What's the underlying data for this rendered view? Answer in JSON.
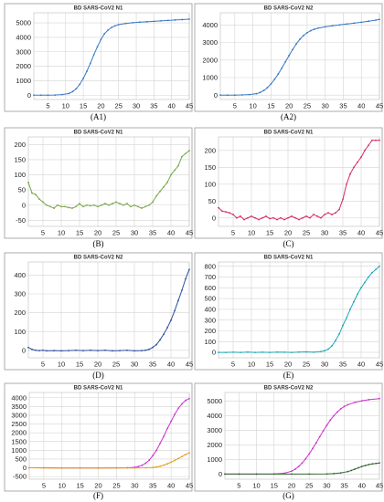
{
  "figure": {
    "caption_labels": [
      "(A1)",
      "(A2)",
      "(B)",
      "(C)",
      "(D)",
      "(E)",
      "(F)",
      "(G)"
    ]
  },
  "chart_data": [
    {
      "panel": "(A1)",
      "type": "line",
      "title": "BD SARS-CoV2 N1",
      "x_ticks": [
        5,
        10,
        15,
        20,
        25,
        30,
        35,
        40,
        45
      ],
      "y_ticks": [
        0,
        1000,
        2000,
        3000,
        4000,
        5000
      ],
      "xlim": [
        1,
        45
      ],
      "ylim": [
        -300,
        5700
      ],
      "grid": true,
      "series": [
        {
          "color": "#3a78c2",
          "x": [
            1,
            3,
            5,
            7,
            9,
            11,
            12,
            13,
            14,
            15,
            16,
            17,
            18,
            19,
            20,
            21,
            22,
            23,
            24,
            25,
            27,
            29,
            31,
            33,
            35,
            37,
            39,
            41,
            43,
            45
          ],
          "y": [
            0,
            0,
            0,
            10,
            40,
            120,
            250,
            450,
            750,
            1150,
            1650,
            2200,
            2800,
            3350,
            3850,
            4250,
            4500,
            4680,
            4800,
            4880,
            4960,
            5010,
            5050,
            5080,
            5110,
            5140,
            5170,
            5200,
            5230,
            5260
          ]
        }
      ]
    },
    {
      "panel": "(A2)",
      "type": "line",
      "title": "BD SARS-CoV2 N2",
      "x_ticks": [
        5,
        10,
        15,
        20,
        25,
        30,
        35,
        40,
        45
      ],
      "y_ticks": [
        0,
        1000,
        2000,
        3000,
        4000
      ],
      "xlim": [
        1,
        45
      ],
      "ylim": [
        -250,
        4700
      ],
      "grid": true,
      "series": [
        {
          "color": "#3a78c2",
          "x": [
            1,
            3,
            5,
            7,
            9,
            11,
            12,
            13,
            14,
            15,
            16,
            17,
            18,
            19,
            20,
            21,
            22,
            23,
            24,
            25,
            26,
            27,
            28,
            30,
            32,
            34,
            36,
            38,
            40,
            42,
            44,
            45
          ],
          "y": [
            0,
            0,
            0,
            10,
            30,
            80,
            150,
            260,
            420,
            640,
            900,
            1200,
            1540,
            1900,
            2260,
            2600,
            2920,
            3190,
            3400,
            3560,
            3680,
            3760,
            3820,
            3900,
            3960,
            4010,
            4060,
            4110,
            4160,
            4220,
            4280,
            4320
          ]
        }
      ]
    },
    {
      "panel": "(B)",
      "type": "line",
      "title": "BD SARS-CoV2 N1",
      "x_ticks": [
        5,
        10,
        15,
        20,
        25,
        30,
        35,
        40,
        45
      ],
      "y_ticks": [
        -50,
        0,
        50,
        100,
        150,
        200
      ],
      "xlim": [
        1,
        45
      ],
      "ylim": [
        -70,
        225
      ],
      "grid": true,
      "series": [
        {
          "color": "#7aa84a",
          "x": [
            1,
            2,
            3,
            4,
            5,
            6,
            7,
            8,
            9,
            10,
            11,
            12,
            13,
            14,
            15,
            16,
            17,
            18,
            19,
            20,
            21,
            22,
            23,
            24,
            25,
            26,
            27,
            28,
            29,
            30,
            31,
            32,
            33,
            34,
            35,
            36,
            37,
            38,
            39,
            40,
            41,
            42,
            43,
            44,
            45
          ],
          "y": [
            75,
            40,
            35,
            20,
            10,
            0,
            -5,
            -10,
            0,
            -5,
            -5,
            -8,
            -10,
            -5,
            5,
            -5,
            0,
            -2,
            0,
            -5,
            0,
            5,
            0,
            5,
            10,
            5,
            0,
            5,
            -5,
            0,
            -5,
            -10,
            -5,
            0,
            10,
            30,
            45,
            60,
            75,
            100,
            115,
            130,
            160,
            170,
            180
          ]
        }
      ]
    },
    {
      "panel": "(C)",
      "type": "line",
      "title": "BD SARS-CoV2 N1",
      "x_ticks": [
        5,
        10,
        15,
        20,
        25,
        30,
        35,
        40,
        45
      ],
      "y_ticks": [
        0,
        50,
        100,
        150,
        200
      ],
      "xlim": [
        1,
        45
      ],
      "ylim": [
        -25,
        240
      ],
      "grid": true,
      "series": [
        {
          "color": "#d62c6a",
          "x": [
            1,
            2,
            3,
            4,
            5,
            6,
            7,
            8,
            9,
            10,
            11,
            12,
            13,
            14,
            15,
            16,
            17,
            18,
            19,
            20,
            21,
            22,
            23,
            24,
            25,
            26,
            27,
            28,
            29,
            30,
            31,
            32,
            33,
            34,
            35,
            36,
            37,
            38,
            39,
            40,
            41,
            42,
            43,
            44,
            45
          ],
          "y": [
            30,
            20,
            18,
            15,
            10,
            0,
            5,
            -5,
            0,
            5,
            0,
            -5,
            0,
            5,
            -2,
            0,
            -5,
            0,
            -5,
            0,
            5,
            0,
            -5,
            0,
            5,
            0,
            10,
            5,
            0,
            10,
            15,
            10,
            15,
            25,
            55,
            100,
            130,
            150,
            165,
            180,
            200,
            215,
            230,
            230,
            230
          ]
        }
      ]
    },
    {
      "panel": "(D)",
      "type": "line",
      "title": "BD SARS-CoV2 N2",
      "x_ticks": [
        5,
        10,
        15,
        20,
        25,
        30,
        35,
        40,
        45
      ],
      "y_ticks": [
        0,
        100,
        200,
        300,
        400
      ],
      "xlim": [
        1,
        45
      ],
      "ylim": [
        -40,
        470
      ],
      "grid": true,
      "series": [
        {
          "color": "#2f4fa3",
          "x": [
            1,
            2,
            3,
            4,
            5,
            6,
            8,
            10,
            12,
            14,
            16,
            18,
            20,
            22,
            24,
            26,
            28,
            30,
            32,
            33,
            34,
            35,
            36,
            37,
            38,
            39,
            40,
            41,
            42,
            43,
            44,
            45
          ],
          "y": [
            15,
            5,
            0,
            -2,
            0,
            -3,
            -2,
            -3,
            -2,
            0,
            -2,
            0,
            -2,
            0,
            -3,
            -2,
            0,
            -3,
            -2,
            0,
            5,
            15,
            30,
            55,
            85,
            120,
            160,
            210,
            265,
            320,
            380,
            430
          ]
        }
      ]
    },
    {
      "panel": "(E)",
      "type": "line",
      "title": "BD SARS-CoV2 N1",
      "x_ticks": [
        5,
        10,
        15,
        20,
        25,
        30,
        35,
        40,
        45
      ],
      "y_ticks": [
        0,
        100,
        200,
        300,
        400,
        500,
        600,
        700,
        800
      ],
      "xlim": [
        1,
        45
      ],
      "ylim": [
        -50,
        840
      ],
      "grid": true,
      "series": [
        {
          "color": "#1fa8b8",
          "x": [
            1,
            3,
            5,
            7,
            9,
            11,
            13,
            15,
            17,
            19,
            21,
            23,
            25,
            27,
            29,
            30,
            31,
            32,
            33,
            34,
            35,
            36,
            37,
            38,
            39,
            40,
            41,
            42,
            43,
            44,
            45
          ],
          "y": [
            0,
            0,
            2,
            0,
            3,
            0,
            2,
            0,
            3,
            2,
            0,
            3,
            5,
            2,
            8,
            15,
            30,
            60,
            110,
            170,
            250,
            320,
            400,
            470,
            540,
            600,
            650,
            700,
            740,
            770,
            800
          ]
        }
      ]
    },
    {
      "panel": "(F)",
      "type": "line",
      "title": "BD SARS-CoV2 N1",
      "x_ticks": [
        5,
        10,
        15,
        20,
        25,
        30,
        35,
        40,
        45
      ],
      "y_ticks": [
        -500,
        0,
        500,
        1000,
        1500,
        2000,
        2500,
        3000,
        3500,
        4000
      ],
      "xlim": [
        1,
        45
      ],
      "ylim": [
        -650,
        4300
      ],
      "grid": true,
      "series": [
        {
          "color": "#cc33cc",
          "x": [
            1,
            5,
            10,
            15,
            20,
            25,
            28,
            30,
            31,
            32,
            33,
            34,
            35,
            36,
            37,
            38,
            39,
            40,
            41,
            42,
            43,
            44,
            45
          ],
          "y": [
            0,
            0,
            -10,
            -10,
            -10,
            -5,
            0,
            30,
            70,
            140,
            260,
            440,
            700,
            1000,
            1400,
            1800,
            2250,
            2650,
            3050,
            3400,
            3650,
            3850,
            3950
          ]
        },
        {
          "color": "#e0a020",
          "x": [
            1,
            5,
            10,
            15,
            20,
            25,
            30,
            33,
            35,
            36,
            37,
            38,
            39,
            40,
            41,
            42,
            43,
            44,
            45
          ],
          "y": [
            0,
            -10,
            -20,
            -10,
            -20,
            -10,
            -10,
            0,
            20,
            50,
            90,
            150,
            230,
            320,
            420,
            530,
            640,
            760,
            850
          ]
        }
      ]
    },
    {
      "panel": "(G)",
      "type": "line",
      "title": "BD SARS-CoV2 N2",
      "x_ticks": [
        5,
        10,
        15,
        20,
        25,
        30,
        35,
        40,
        45
      ],
      "y_ticks": [
        0,
        1000,
        2000,
        3000,
        4000,
        5000
      ],
      "xlim": [
        1,
        45
      ],
      "ylim": [
        -350,
        5600
      ],
      "grid": true,
      "series": [
        {
          "color": "#cc33cc",
          "x": [
            1,
            5,
            10,
            15,
            18,
            20,
            21,
            22,
            23,
            24,
            25,
            26,
            27,
            28,
            29,
            30,
            31,
            32,
            33,
            34,
            35,
            36,
            38,
            40,
            42,
            45
          ],
          "y": [
            0,
            0,
            0,
            10,
            60,
            200,
            330,
            520,
            760,
            1050,
            1380,
            1760,
            2150,
            2560,
            2960,
            3340,
            3700,
            4000,
            4260,
            4480,
            4640,
            4760,
            4920,
            5030,
            5110,
            5180
          ]
        },
        {
          "color": "#336633",
          "x": [
            1,
            5,
            10,
            15,
            20,
            25,
            30,
            32,
            34,
            36,
            37,
            38,
            39,
            40,
            41,
            42,
            43,
            44,
            45
          ],
          "y": [
            0,
            0,
            0,
            0,
            0,
            0,
            10,
            30,
            80,
            170,
            250,
            340,
            430,
            520,
            590,
            650,
            700,
            730,
            760
          ]
        }
      ]
    }
  ]
}
